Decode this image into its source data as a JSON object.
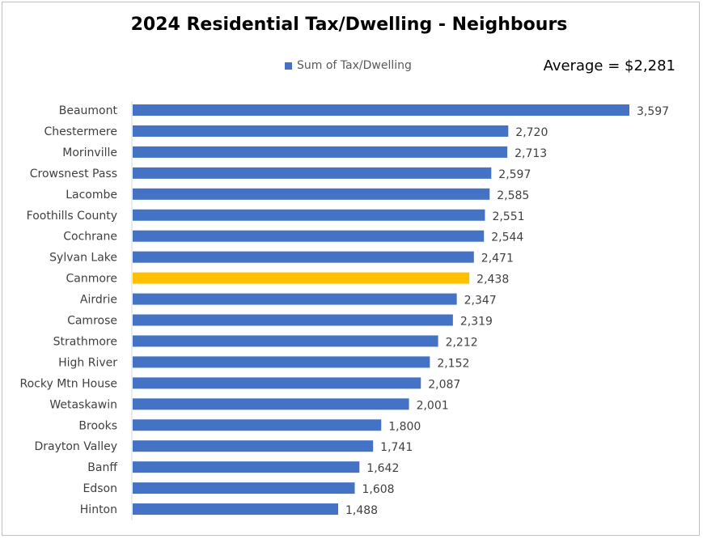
{
  "colors": {
    "bar": "#4472c4",
    "highlight": "#ffc000",
    "axis": "#d9d9d9"
  },
  "chart_data": {
    "type": "bar",
    "orientation": "horizontal",
    "title": "2024 Residential Tax/Dwelling - Neighbours",
    "legend": {
      "label": "Sum of Tax/Dwelling",
      "position": "top"
    },
    "annotation": "Average = $2,281",
    "highlight_category": "Canmore",
    "categories": [
      "Beaumont",
      "Chestermere",
      "Morinville",
      "Crowsnest Pass",
      "Lacombe",
      "Foothills County",
      "Cochrane",
      "Sylvan Lake",
      "Canmore",
      "Airdrie",
      "Camrose",
      "Strathmore",
      "High River",
      "Rocky Mtn House",
      "Wetaskawin",
      "Brooks",
      "Drayton Valley",
      "Banff",
      "Edson",
      "Hinton"
    ],
    "values": [
      3597,
      2720,
      2713,
      2597,
      2585,
      2551,
      2544,
      2471,
      2438,
      2347,
      2319,
      2212,
      2152,
      2087,
      2001,
      1800,
      1741,
      1642,
      1608,
      1488
    ],
    "value_labels": [
      "3,597",
      "2,720",
      "2,713",
      "2,597",
      "2,585",
      "2,551",
      "2,544",
      "2,471",
      "2,438",
      "2,347",
      "2,319",
      "2,212",
      "2,152",
      "2,087",
      "2,001",
      "1,800",
      "1,741",
      "1,642",
      "1,608",
      "1,488"
    ],
    "xlim": [
      0,
      3597
    ],
    "grid": false
  }
}
